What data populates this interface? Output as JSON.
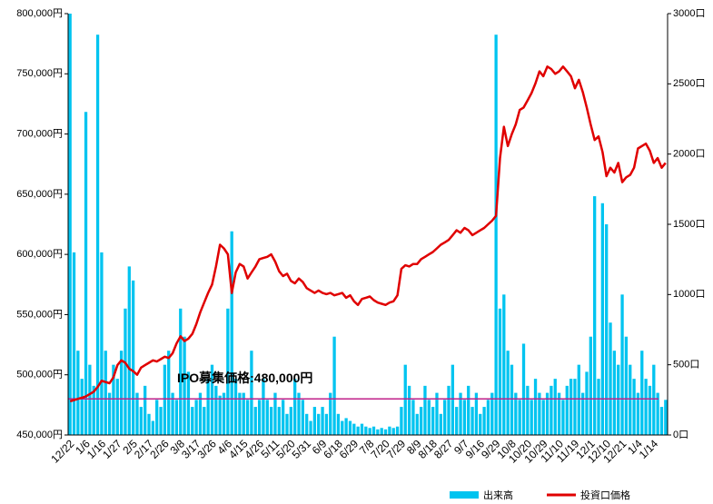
{
  "chart_data": {
    "type": "bar_line",
    "categories": [
      "12/22",
      null,
      null,
      null,
      "1/6",
      null,
      null,
      null,
      "1/16",
      null,
      null,
      null,
      "1/27",
      null,
      null,
      null,
      "2/5",
      null,
      null,
      null,
      "2/17",
      null,
      null,
      null,
      "2/26",
      null,
      null,
      null,
      "3/8",
      null,
      null,
      null,
      "3/17",
      null,
      null,
      null,
      "3/26",
      null,
      null,
      null,
      "4/6",
      null,
      null,
      null,
      "4/15",
      null,
      null,
      null,
      "4/26",
      null,
      null,
      null,
      "5/11",
      null,
      null,
      null,
      "5/20",
      null,
      null,
      null,
      "5/31",
      null,
      null,
      null,
      "6/9",
      null,
      null,
      null,
      "6/18",
      null,
      null,
      null,
      "6/29",
      null,
      null,
      null,
      "7/8",
      null,
      null,
      null,
      "7/20",
      null,
      null,
      null,
      "7/29",
      null,
      null,
      null,
      "8/9",
      null,
      null,
      null,
      "8/18",
      null,
      null,
      null,
      "8/27",
      null,
      null,
      null,
      "9/7",
      null,
      null,
      null,
      "9/16",
      null,
      null,
      null,
      "9/29",
      null,
      null,
      null,
      "10/8",
      null,
      null,
      null,
      "10/20",
      null,
      null,
      null,
      "10/29",
      null,
      null,
      null,
      "11/10",
      null,
      null,
      null,
      "11/19",
      null,
      null,
      null,
      "12/1",
      null,
      null,
      null,
      "12/10",
      null,
      null,
      null,
      "12/21",
      null,
      null,
      null,
      "1/4",
      null,
      null,
      null,
      "1/14",
      null,
      null,
      null
    ],
    "series": [
      {
        "name": "出来高",
        "color": "#00c4f0",
        "axis": "y2",
        "kind": "bar",
        "values": [
          3000,
          1300,
          600,
          400,
          2300,
          500,
          350,
          2850,
          1300,
          600,
          300,
          500,
          400,
          600,
          900,
          1200,
          1100,
          300,
          200,
          350,
          150,
          100,
          250,
          200,
          500,
          600,
          300,
          250,
          900,
          700,
          450,
          200,
          250,
          300,
          200,
          400,
          500,
          350,
          280,
          300,
          900,
          1450,
          400,
          300,
          300,
          250,
          600,
          200,
          250,
          400,
          250,
          200,
          300,
          200,
          250,
          150,
          200,
          400,
          300,
          250,
          150,
          100,
          200,
          150,
          200,
          150,
          300,
          700,
          150,
          100,
          120,
          100,
          80,
          60,
          80,
          60,
          50,
          60,
          40,
          50,
          40,
          60,
          50,
          60,
          200,
          500,
          350,
          250,
          150,
          200,
          350,
          250,
          200,
          300,
          150,
          250,
          350,
          500,
          200,
          300,
          250,
          350,
          200,
          300,
          150,
          200,
          250,
          300,
          2850,
          900,
          1000,
          600,
          500,
          300,
          250,
          650,
          350,
          250,
          400,
          300,
          250,
          300,
          350,
          400,
          300,
          250,
          350,
          400,
          400,
          500,
          300,
          450,
          700,
          1700,
          400,
          1650,
          1500,
          800,
          600,
          500,
          1000,
          700,
          500,
          400,
          300,
          600,
          400,
          350,
          500,
          300,
          200,
          250
        ]
      },
      {
        "name": "投資口価格",
        "color": "#e00000",
        "axis": "y",
        "kind": "line",
        "values": [
          478000,
          479000,
          480000,
          481000,
          482000,
          484000,
          486000,
          490000,
          495000,
          494000,
          493000,
          498000,
          508000,
          512000,
          510000,
          505000,
          503000,
          500000,
          506000,
          508000,
          510000,
          512000,
          511000,
          513000,
          515000,
          514000,
          518000,
          526000,
          532000,
          528000,
          530000,
          534000,
          542000,
          552000,
          560000,
          568000,
          575000,
          590000,
          608000,
          605000,
          600000,
          568000,
          585000,
          592000,
          590000,
          580000,
          585000,
          590000,
          596000,
          597000,
          598000,
          600000,
          594000,
          586000,
          582000,
          584000,
          578000,
          576000,
          580000,
          577000,
          572000,
          570000,
          568000,
          570000,
          568000,
          567000,
          568000,
          566000,
          567000,
          568000,
          564000,
          566000,
          561000,
          558000,
          563000,
          564000,
          565000,
          562000,
          560000,
          559000,
          558000,
          560000,
          561000,
          566000,
          588000,
          591000,
          590000,
          592000,
          592000,
          596000,
          598000,
          600000,
          602000,
          605000,
          608000,
          610000,
          612000,
          616000,
          620000,
          618000,
          622000,
          620000,
          616000,
          618000,
          620000,
          622000,
          625000,
          628000,
          632000,
          680000,
          706000,
          690000,
          700000,
          708000,
          720000,
          722000,
          728000,
          734000,
          742000,
          752000,
          748000,
          756000,
          754000,
          750000,
          752000,
          756000,
          752000,
          748000,
          738000,
          745000,
          735000,
          722000,
          708000,
          695000,
          698000,
          685000,
          665000,
          672000,
          668000,
          676000,
          660000,
          664000,
          666000,
          672000,
          688000,
          690000,
          692000,
          686000,
          676000,
          680000,
          672000,
          676000
        ]
      }
    ],
    "ylim": [
      450000,
      800000
    ],
    "yticks": [
      {
        "value": 450000,
        "label": "450,000円"
      },
      {
        "value": 500000,
        "label": "500,000円"
      },
      {
        "value": 550000,
        "label": "550,000円"
      },
      {
        "value": 600000,
        "label": "600,000円"
      },
      {
        "value": 650000,
        "label": "650,000円"
      },
      {
        "value": 700000,
        "label": "700,000円"
      },
      {
        "value": 750000,
        "label": "750,000円"
      },
      {
        "value": 800000,
        "label": "800,000円"
      }
    ],
    "y2lim": [
      0,
      3000
    ],
    "y2ticks": [
      {
        "value": 0,
        "label": "0口"
      },
      {
        "value": 500,
        "label": "500口"
      },
      {
        "value": 1000,
        "label": "1000口"
      },
      {
        "value": 1500,
        "label": "1500口"
      },
      {
        "value": 2000,
        "label": "2000口"
      },
      {
        "value": 2500,
        "label": "2500口"
      },
      {
        "value": 3000,
        "label": "3000口"
      }
    ],
    "annotation": {
      "text": "IPO募集価格:480,000円",
      "value": 480000,
      "color": "#c0208a"
    },
    "legend": "bottom-right"
  }
}
